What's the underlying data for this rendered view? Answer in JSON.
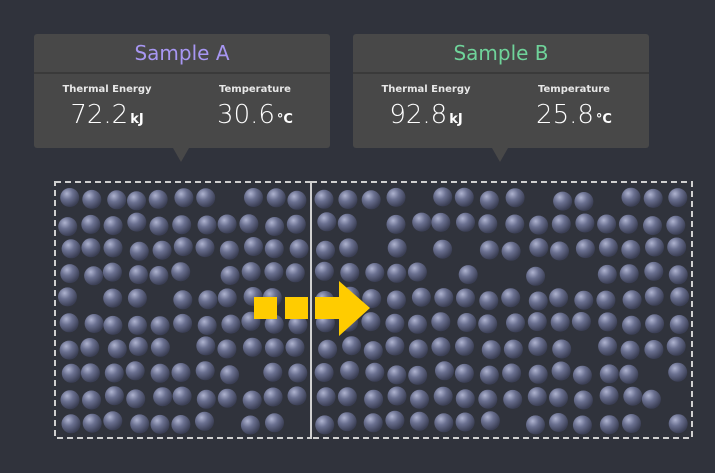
{
  "samples": [
    {
      "name": "Sample A",
      "thermal_energy_label": "Thermal Energy",
      "thermal_energy_value": "72.2",
      "thermal_energy_unit": "kJ",
      "temperature_label": "Temperature",
      "temperature_value": "30.6",
      "temperature_unit": "°C"
    },
    {
      "name": "Sample B",
      "thermal_energy_label": "Thermal Energy",
      "thermal_energy_value": "92.8",
      "thermal_energy_unit": "kJ",
      "temperature_label": "Temperature",
      "temperature_value": "25.8",
      "temperature_unit": "°C"
    }
  ],
  "colors": {
    "background": "#30333c",
    "card": "#484848",
    "sample_a_accent": "#a796f2",
    "sample_b_accent": "#6fd39a",
    "arrow": "#ffcc00",
    "particle": "#5b607b",
    "border": "#d0d0d0"
  },
  "icons": {
    "transfer_arrow": "heat-transfer-arrow-icon"
  }
}
